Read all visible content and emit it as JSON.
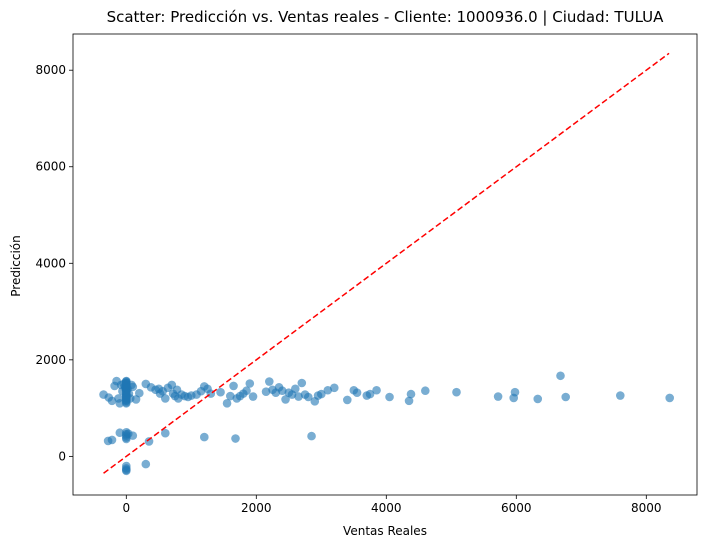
{
  "chart_data": {
    "type": "scatter",
    "title": "Scatter: Predicción vs. Ventas reales - Cliente: 1000936.0 | Ciudad: TULUA",
    "xlabel": "Ventas Reales",
    "ylabel": "Predicción",
    "xlim": [
      -820,
      8780
    ],
    "ylim": [
      -800,
      8750
    ],
    "xticks": [
      0,
      2000,
      4000,
      6000,
      8000
    ],
    "yticks": [
      0,
      2000,
      4000,
      6000,
      8000
    ],
    "grid": false,
    "point_color": "#1f77b4",
    "reference_line": {
      "style": "dashed",
      "color": "#ff0000",
      "from": [
        -350,
        -350
      ],
      "to": [
        8350,
        8350
      ]
    },
    "points": {
      "x": [
        -350,
        -270,
        -220,
        -180,
        -150,
        -120,
        -100,
        -80,
        -60,
        -40,
        -20,
        -10,
        0,
        0,
        0,
        0,
        0,
        0,
        0,
        0,
        0,
        0,
        0,
        0,
        0,
        0,
        0,
        0,
        0,
        0,
        0,
        0,
        0,
        0,
        0,
        0,
        0,
        20,
        40,
        60,
        80,
        100,
        150,
        200,
        300,
        380,
        450,
        500,
        520,
        560,
        600,
        640,
        700,
        720,
        750,
        780,
        800,
        850,
        900,
        950,
        1000,
        1080,
        1150,
        1200,
        1250,
        1300,
        1450,
        1550,
        1600,
        1650,
        1700,
        1750,
        1800,
        1850,
        1900,
        1950,
        2150,
        2200,
        2250,
        2300,
        2350,
        2400,
        2450,
        2500,
        2550,
        2600,
        2650,
        2700,
        2750,
        2800,
        2900,
        2950,
        3000,
        3100,
        3200,
        3400,
        3500,
        3550,
        3700,
        3750,
        3850,
        4050,
        4350,
        4380,
        4600,
        5080,
        5720,
        5960,
        5980,
        6330,
        6680,
        6760,
        7600,
        8360,
        -280,
        -220,
        -100,
        0,
        0,
        0,
        0,
        0,
        30,
        100,
        350,
        600,
        1200,
        1680,
        2850,
        0,
        0,
        0,
        0,
        300
      ],
      "y": [
        1280,
        1220,
        1150,
        1460,
        1560,
        1200,
        1100,
        1480,
        1350,
        1500,
        1450,
        1400,
        1550,
        1380,
        1300,
        1250,
        1200,
        1150,
        1100,
        1520,
        1420,
        1330,
        1180,
        1560,
        1480,
        1260,
        1120,
        1380,
        1240,
        1500,
        1160,
        1460,
        1280,
        1350,
        1420,
        1210,
        1530,
        1400,
        1300,
        1200,
        1480,
        1440,
        1180,
        1310,
        1500,
        1430,
        1380,
        1400,
        1300,
        1350,
        1200,
        1420,
        1480,
        1300,
        1250,
        1380,
        1200,
        1280,
        1250,
        1230,
        1260,
        1280,
        1350,
        1450,
        1400,
        1300,
        1330,
        1100,
        1250,
        1460,
        1200,
        1250,
        1300,
        1360,
        1510,
        1240,
        1340,
        1550,
        1380,
        1320,
        1430,
        1360,
        1180,
        1320,
        1280,
        1400,
        1240,
        1520,
        1280,
        1230,
        1140,
        1260,
        1290,
        1370,
        1420,
        1170,
        1370,
        1320,
        1260,
        1290,
        1370,
        1230,
        1150,
        1290,
        1360,
        1330,
        1240,
        1210,
        1330,
        1190,
        1670,
        1230,
        1260,
        1210,
        320,
        340,
        490,
        500,
        460,
        430,
        390,
        360,
        470,
        430,
        310,
        480,
        400,
        370,
        420,
        -200,
        -250,
        -280,
        -300,
        -160
      ]
    }
  }
}
